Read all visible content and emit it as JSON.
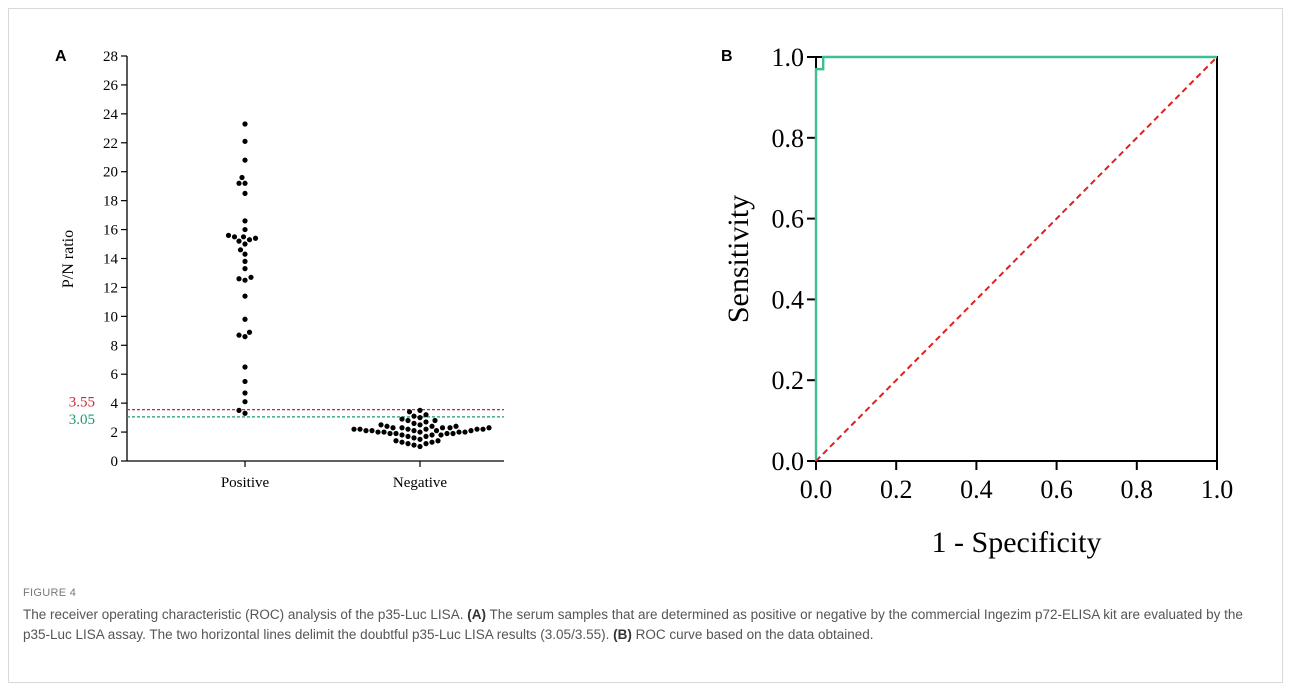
{
  "figure": {
    "label": "FIGURE 4",
    "caption_parts": [
      {
        "text": "The receiver operating characteristic (ROC) analysis of the p35-Luc LISA. ",
        "bold": false
      },
      {
        "text": "(A)",
        "bold": true
      },
      {
        "text": " The serum samples that are determined as positive or negative by the commercial Ingezim p72-ELISA kit are evaluated by the p35-Luc LISA assay. The two horizontal lines delimit the doubtful p35-Luc LISA results (3.05/3.55). ",
        "bold": false
      },
      {
        "text": "(B)",
        "bold": true
      },
      {
        "text": " ROC curve based on the data obtained.",
        "bold": false
      }
    ]
  },
  "colors": {
    "points": "#000000",
    "cutoff_high": "#d0262c",
    "cutoff_low": "#1a9a73",
    "roc_curve": "#3dbf8e",
    "reference_line": "#e02020",
    "caption": "#555555"
  },
  "chart_data": [
    {
      "panel": "A",
      "type": "scatter",
      "ylabel": "P/N ratio",
      "ylim": [
        0,
        28
      ],
      "yticks": [
        0,
        2,
        4,
        6,
        8,
        10,
        12,
        14,
        16,
        18,
        20,
        22,
        24,
        26,
        28
      ],
      "categories": [
        "Positive",
        "Negative"
      ],
      "cutoffs": [
        {
          "value": 3.55,
          "label": "3.55",
          "color": "#d0262c"
        },
        {
          "value": 3.05,
          "label": "3.05",
          "color": "#1a9a73"
        }
      ],
      "series": [
        {
          "category": "Positive",
          "values": [
            23.3,
            22.1,
            20.8,
            19.6,
            19.2,
            19.2,
            18.5,
            16.6,
            16.0,
            15.6,
            15.5,
            15.5,
            15.4,
            15.3,
            15.2,
            15.0,
            14.6,
            14.3,
            13.8,
            13.3,
            12.7,
            12.6,
            12.5,
            11.4,
            9.8,
            8.9,
            8.7,
            8.6,
            6.5,
            5.5,
            4.7,
            4.1,
            3.5,
            3.3
          ]
        },
        {
          "category": "Negative",
          "values": [
            3.5,
            3.4,
            3.2,
            3.1,
            3.0,
            2.9,
            2.8,
            2.8,
            2.7,
            2.6,
            2.5,
            2.5,
            2.4,
            2.4,
            2.4,
            2.3,
            2.3,
            2.3,
            2.3,
            2.3,
            2.2,
            2.2,
            2.2,
            2.2,
            2.2,
            2.2,
            2.1,
            2.1,
            2.1,
            2.1,
            2.1,
            2.0,
            2.0,
            2.0,
            2.0,
            2.0,
            1.9,
            1.9,
            1.9,
            1.9,
            1.8,
            1.8,
            1.8,
            1.7,
            1.7,
            1.6,
            1.5,
            1.4,
            1.4,
            1.3,
            1.3,
            1.2,
            1.2,
            1.1,
            1.0
          ]
        }
      ]
    },
    {
      "panel": "B",
      "type": "line",
      "xlabel": "1 - Specificity",
      "ylabel": "Sensitivity",
      "xlim": [
        0,
        1
      ],
      "ylim": [
        0,
        1
      ],
      "xticks": [
        "0.0",
        "0.2",
        "0.4",
        "0.6",
        "0.8",
        "1.0"
      ],
      "yticks": [
        "0.0",
        "0.2",
        "0.4",
        "0.6",
        "0.8",
        "1.0"
      ],
      "series": [
        {
          "kind": "roc",
          "x": [
            0.0,
            0.0,
            0.018,
            0.018,
            1.0
          ],
          "y": [
            0.0,
            0.97,
            0.97,
            1.0,
            1.0
          ]
        },
        {
          "kind": "reference",
          "x": [
            0,
            1
          ],
          "y": [
            0,
            1
          ]
        }
      ]
    }
  ]
}
